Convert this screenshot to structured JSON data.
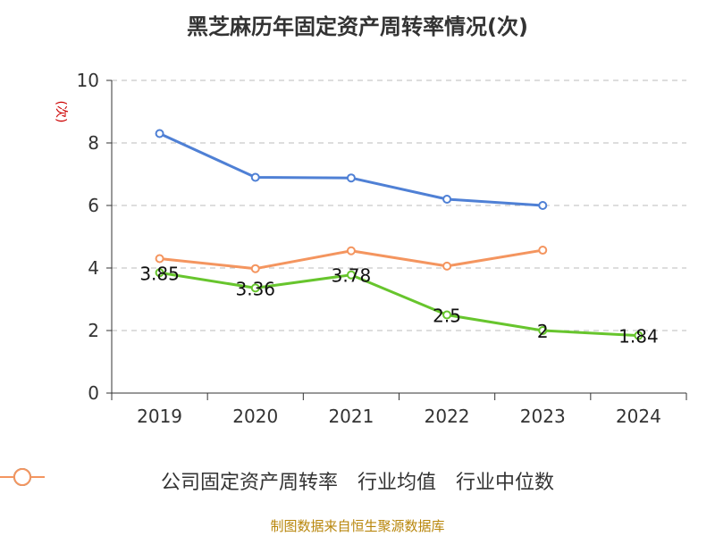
{
  "title": "黑芝麻历年固定资产周转率情况(次)",
  "source": "制图数据来自恒生聚源数据库",
  "colors": {
    "green": "#67c52d",
    "blue": "#4f80d5",
    "orange": "#f4955f",
    "unit_red": "#cc0000",
    "grid": "#bbbbbb",
    "axis": "#333333"
  },
  "chart_data": {
    "type": "line",
    "title": "黑芝麻历年固定资产周转率情况(次)",
    "ylabel": "(次)",
    "categories": [
      "2019",
      "2020",
      "2021",
      "2022",
      "2023",
      "2024"
    ],
    "ylim": [
      0,
      10
    ],
    "yticks": [
      0,
      2,
      4,
      6,
      8,
      10
    ],
    "grid": true,
    "legend_position": "bottom",
    "series": [
      {
        "name": "公司固定资产周转率",
        "color": "#67c52d",
        "values": [
          3.85,
          3.36,
          3.78,
          2.5,
          2,
          1.84
        ],
        "labels": [
          "3.85",
          "3.36",
          "3.78",
          "2.5",
          "2",
          "1.84"
        ]
      },
      {
        "name": "行业均值",
        "color": "#4f80d5",
        "values": [
          8.3,
          6.9,
          6.88,
          6.2,
          6.0,
          null
        ]
      },
      {
        "name": "行业中位数",
        "color": "#f4955f",
        "values": [
          4.3,
          3.98,
          4.55,
          4.06,
          4.57,
          null
        ]
      }
    ]
  }
}
